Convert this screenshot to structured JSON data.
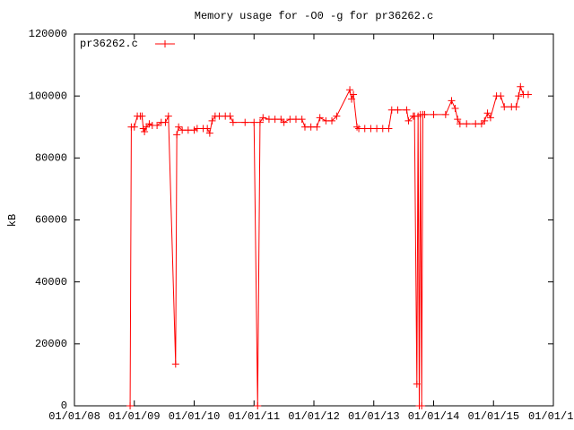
{
  "chart_data": {
    "type": "line",
    "title": "Memory usage for -O0 -g for pr36262.c",
    "ylabel": "kB",
    "legend": "top left",
    "xlim": [
      2008,
      2016
    ],
    "xticks": [
      {
        "value": 2008,
        "label": "01/01/08"
      },
      {
        "value": 2009,
        "label": "01/01/09"
      },
      {
        "value": 2010,
        "label": "01/01/10"
      },
      {
        "value": 2011,
        "label": "01/01/11"
      },
      {
        "value": 2012,
        "label": "01/01/12"
      },
      {
        "value": 2013,
        "label": "01/01/13"
      },
      {
        "value": 2014,
        "label": "01/01/14"
      },
      {
        "value": 2015,
        "label": "01/01/15"
      },
      {
        "value": 2016,
        "label": "01/01/1"
      }
    ],
    "ylim": [
      0,
      120000
    ],
    "yticks": [
      0,
      20000,
      40000,
      60000,
      80000,
      100000,
      120000
    ],
    "series": [
      {
        "name": "pr36262.c",
        "color": "#ff0000",
        "x": [
          2008.93,
          2008.95,
          2009.0,
          2009.05,
          2009.1,
          2009.13,
          2009.15,
          2009.17,
          2009.2,
          2009.25,
          2009.3,
          2009.38,
          2009.45,
          2009.52,
          2009.57,
          2009.69,
          2009.71,
          2009.74,
          2009.8,
          2009.9,
          2010.0,
          2010.05,
          2010.15,
          2010.22,
          2010.26,
          2010.3,
          2010.35,
          2010.42,
          2010.52,
          2010.6,
          2010.65,
          2010.85,
          2011.0,
          2011.06,
          2011.1,
          2011.15,
          2011.25,
          2011.35,
          2011.45,
          2011.5,
          2011.6,
          2011.7,
          2011.8,
          2011.85,
          2011.95,
          2012.05,
          2012.1,
          2012.2,
          2012.3,
          2012.38,
          2012.6,
          2012.63,
          2012.66,
          2012.72,
          2012.75,
          2012.85,
          2012.95,
          2013.05,
          2013.15,
          2013.25,
          2013.3,
          2013.4,
          2013.55,
          2013.58,
          2013.66,
          2013.68,
          2013.72,
          2013.74,
          2013.76,
          2013.78,
          2013.8,
          2013.82,
          2013.85,
          2014.0,
          2014.2,
          2014.3,
          2014.36,
          2014.4,
          2014.44,
          2014.55,
          2014.7,
          2014.8,
          2014.85,
          2014.9,
          2014.95,
          2015.05,
          2015.12,
          2015.18,
          2015.3,
          2015.38,
          2015.42,
          2015.45,
          2015.5,
          2015.58
        ],
        "values": [
          0,
          90000,
          90000,
          93500,
          93500,
          93500,
          89500,
          88500,
          90000,
          91000,
          90500,
          90500,
          91500,
          91500,
          93500,
          13500,
          87500,
          90000,
          89000,
          89000,
          89000,
          89500,
          89500,
          89500,
          88000,
          92000,
          93500,
          93500,
          93500,
          93500,
          91500,
          91500,
          91500,
          0,
          91500,
          93000,
          92500,
          92500,
          92500,
          91500,
          92500,
          92500,
          92500,
          90000,
          90000,
          90000,
          93000,
          92000,
          92000,
          93500,
          102000,
          99000,
          100500,
          90000,
          89500,
          89500,
          89500,
          89500,
          89500,
          89500,
          95500,
          95500,
          95500,
          92000,
          93500,
          93500,
          7000,
          93500,
          0,
          94000,
          0,
          94000,
          94000,
          94000,
          94000,
          98500,
          96000,
          92500,
          91000,
          91000,
          91000,
          91000,
          92000,
          94500,
          93000,
          100000,
          100000,
          96500,
          96500,
          96500,
          100000,
          103000,
          100500,
          100500
        ]
      }
    ]
  }
}
